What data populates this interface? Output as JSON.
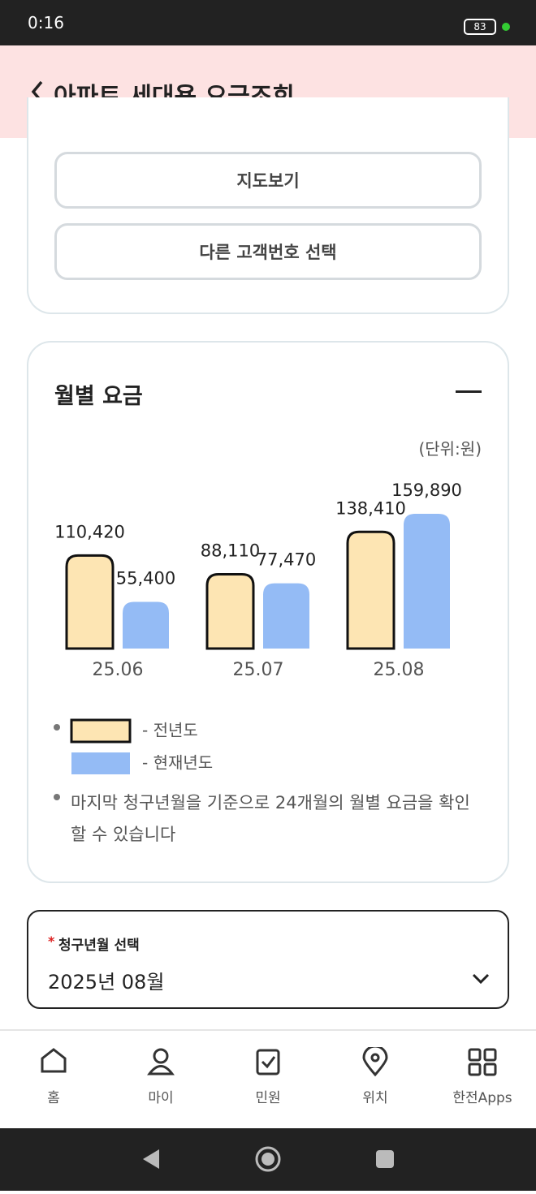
{
  "status_bar": {
    "time": "0:16",
    "battery": "83"
  },
  "header": {
    "title": "아파트 세대용 요금조회"
  },
  "buttons": [
    "지도보기",
    "다른 고객번호 선택"
  ],
  "monthly_section": {
    "title": "월별 요금",
    "unit": "(단위:원)"
  },
  "chart_data": {
    "type": "bar",
    "categories": [
      "25.06",
      "25.07",
      "25.08"
    ],
    "series": [
      {
        "name": "- 전년도",
        "color": "#fde5b3",
        "values": [
          110420,
          88110,
          138410
        ],
        "value_labels": [
          "110,420",
          "88,110",
          "138,410"
        ]
      },
      {
        "name": "- 현재년도",
        "color": "#94bbf5",
        "values": [
          55400,
          77470,
          159890
        ],
        "value_labels": [
          "55,400",
          "77,470",
          "159,890"
        ]
      }
    ]
  },
  "notes": [
    "마지막 청구년월을 기준으로 24개월의 월별 요금을 확인할 수 있습니다"
  ],
  "select": {
    "required_mark": "*",
    "label": "청구년월 선택",
    "value": "2025년 08월"
  },
  "nav": [
    "홈",
    "마이",
    "민원",
    "위치",
    "한전Apps"
  ]
}
